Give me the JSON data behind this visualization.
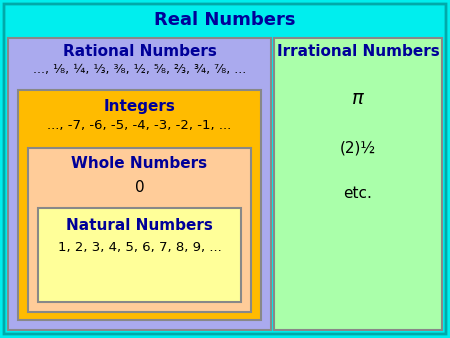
{
  "title": "Real Numbers",
  "outer_bg": "#00EEEE",
  "rational_bg": "#AAAAEE",
  "rational_label": "Rational Numbers",
  "rational_text": "..., ¹⁄₈, ¼, ⅓, ³⁄₈, ½, ⁵⁄₈, ⅔, ¾, ⁷⁄₈, ...",
  "irrational_bg": "#AAFFAA",
  "irrational_label": "Irrational Numbers",
  "irrational_pi": "π",
  "irrational_sqrt": "(2)½",
  "irrational_etc": "etc.",
  "integers_bg": "#FFBB00",
  "integers_label": "Integers",
  "integers_text": "..., -7, -6, -5, -4, -3, -2, -1, ...",
  "whole_bg": "#FFCC99",
  "whole_label": "Whole Numbers",
  "whole_text": "0",
  "natural_bg": "#FFFF99",
  "natural_label": "Natural Numbers",
  "natural_text": "1, 2, 3, 4, 5, 6, 7, 8, 9, ...",
  "label_color": "#000099",
  "text_color": "#000000",
  "edge_color": "#888888",
  "figsize": [
    4.5,
    3.38
  ],
  "dpi": 100
}
